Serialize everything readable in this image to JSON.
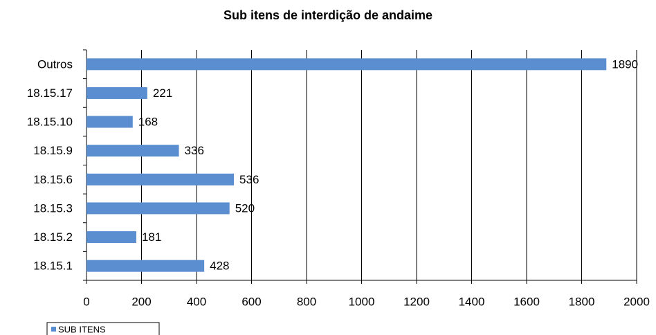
{
  "chart_data": {
    "type": "hbar",
    "title": "Sub itens de interdição de andaime",
    "categories": [
      "Outros",
      "18.15.17",
      "18.15.10",
      "18.15.9",
      "18.15.6",
      "18.15.3",
      "18.15.2",
      "18.15.1"
    ],
    "series": [
      {
        "name": "SUB ITENS",
        "color": "#5b8ed0",
        "values": [
          1890,
          221,
          168,
          336,
          536,
          520,
          181,
          428
        ]
      }
    ],
    "xlim": [
      0,
      2000
    ],
    "xticks": [
      0,
      200,
      400,
      600,
      800,
      1000,
      1200,
      1400,
      1600,
      1800,
      2000
    ],
    "grid": true,
    "legend": "bottom-left"
  }
}
